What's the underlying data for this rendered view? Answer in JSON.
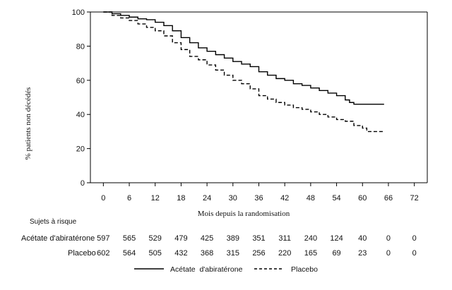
{
  "chart_data": {
    "type": "line",
    "title": "",
    "xlabel": "Mois depuis la randomisation",
    "ylabel": "% patients non décédés",
    "xlim": [
      -3,
      75
    ],
    "ylim": [
      0,
      100
    ],
    "x_ticks": [
      0,
      6,
      12,
      18,
      24,
      30,
      36,
      42,
      48,
      54,
      60,
      66,
      72
    ],
    "y_ticks": [
      0,
      20,
      40,
      60,
      80,
      100
    ],
    "grid": false,
    "legend_position": "bottom",
    "series": [
      {
        "name": "Acétate  d'abiratérone",
        "line_style": "solid",
        "color": "#000000",
        "points": [
          [
            0,
            100
          ],
          [
            2,
            99
          ],
          [
            4,
            98
          ],
          [
            6,
            97
          ],
          [
            8,
            96
          ],
          [
            10,
            95.5
          ],
          [
            12,
            94
          ],
          [
            14,
            92
          ],
          [
            16,
            89
          ],
          [
            18,
            85
          ],
          [
            20,
            82
          ],
          [
            22,
            79
          ],
          [
            24,
            77
          ],
          [
            26,
            75
          ],
          [
            28,
            73
          ],
          [
            30,
            71
          ],
          [
            32,
            69.5
          ],
          [
            34,
            68
          ],
          [
            36,
            65
          ],
          [
            38,
            63
          ],
          [
            40,
            61
          ],
          [
            42,
            60
          ],
          [
            44,
            58
          ],
          [
            46,
            57
          ],
          [
            48,
            55.5
          ],
          [
            50,
            54
          ],
          [
            52,
            52.5
          ],
          [
            54,
            51
          ],
          [
            56,
            48.5
          ],
          [
            57,
            47
          ],
          [
            58,
            46
          ],
          [
            60,
            46
          ],
          [
            63,
            46
          ],
          [
            65,
            46
          ]
        ]
      },
      {
        "name": "Placebo",
        "line_style": "dashed",
        "color": "#000000",
        "points": [
          [
            0,
            100
          ],
          [
            2,
            98
          ],
          [
            4,
            96.5
          ],
          [
            6,
            95
          ],
          [
            8,
            93
          ],
          [
            10,
            91
          ],
          [
            12,
            89
          ],
          [
            14,
            86
          ],
          [
            16,
            82
          ],
          [
            18,
            78
          ],
          [
            20,
            74
          ],
          [
            22,
            72
          ],
          [
            24,
            69
          ],
          [
            26,
            66
          ],
          [
            28,
            63
          ],
          [
            30,
            60
          ],
          [
            32,
            58
          ],
          [
            34,
            55
          ],
          [
            36,
            51
          ],
          [
            38,
            49
          ],
          [
            40,
            47
          ],
          [
            42,
            45.5
          ],
          [
            44,
            44
          ],
          [
            46,
            43
          ],
          [
            48,
            41.5
          ],
          [
            50,
            40
          ],
          [
            52,
            38.5
          ],
          [
            54,
            37
          ],
          [
            56,
            36
          ],
          [
            58,
            33.5
          ],
          [
            60,
            32
          ],
          [
            61,
            30
          ],
          [
            63,
            30
          ],
          [
            65,
            30
          ]
        ]
      }
    ],
    "risk_table": {
      "header": "Sujets à risque",
      "timepoints": [
        0,
        6,
        12,
        18,
        24,
        30,
        36,
        42,
        48,
        54,
        60,
        66,
        72
      ],
      "rows": [
        {
          "label": "Acétate d'abiratérone",
          "values": [
            597,
            565,
            529,
            479,
            425,
            389,
            351,
            311,
            240,
            124,
            40,
            0,
            0
          ]
        },
        {
          "label": "Placebo",
          "values": [
            602,
            564,
            505,
            432,
            368,
            315,
            256,
            220,
            165,
            69,
            23,
            0,
            0
          ]
        }
      ]
    }
  }
}
